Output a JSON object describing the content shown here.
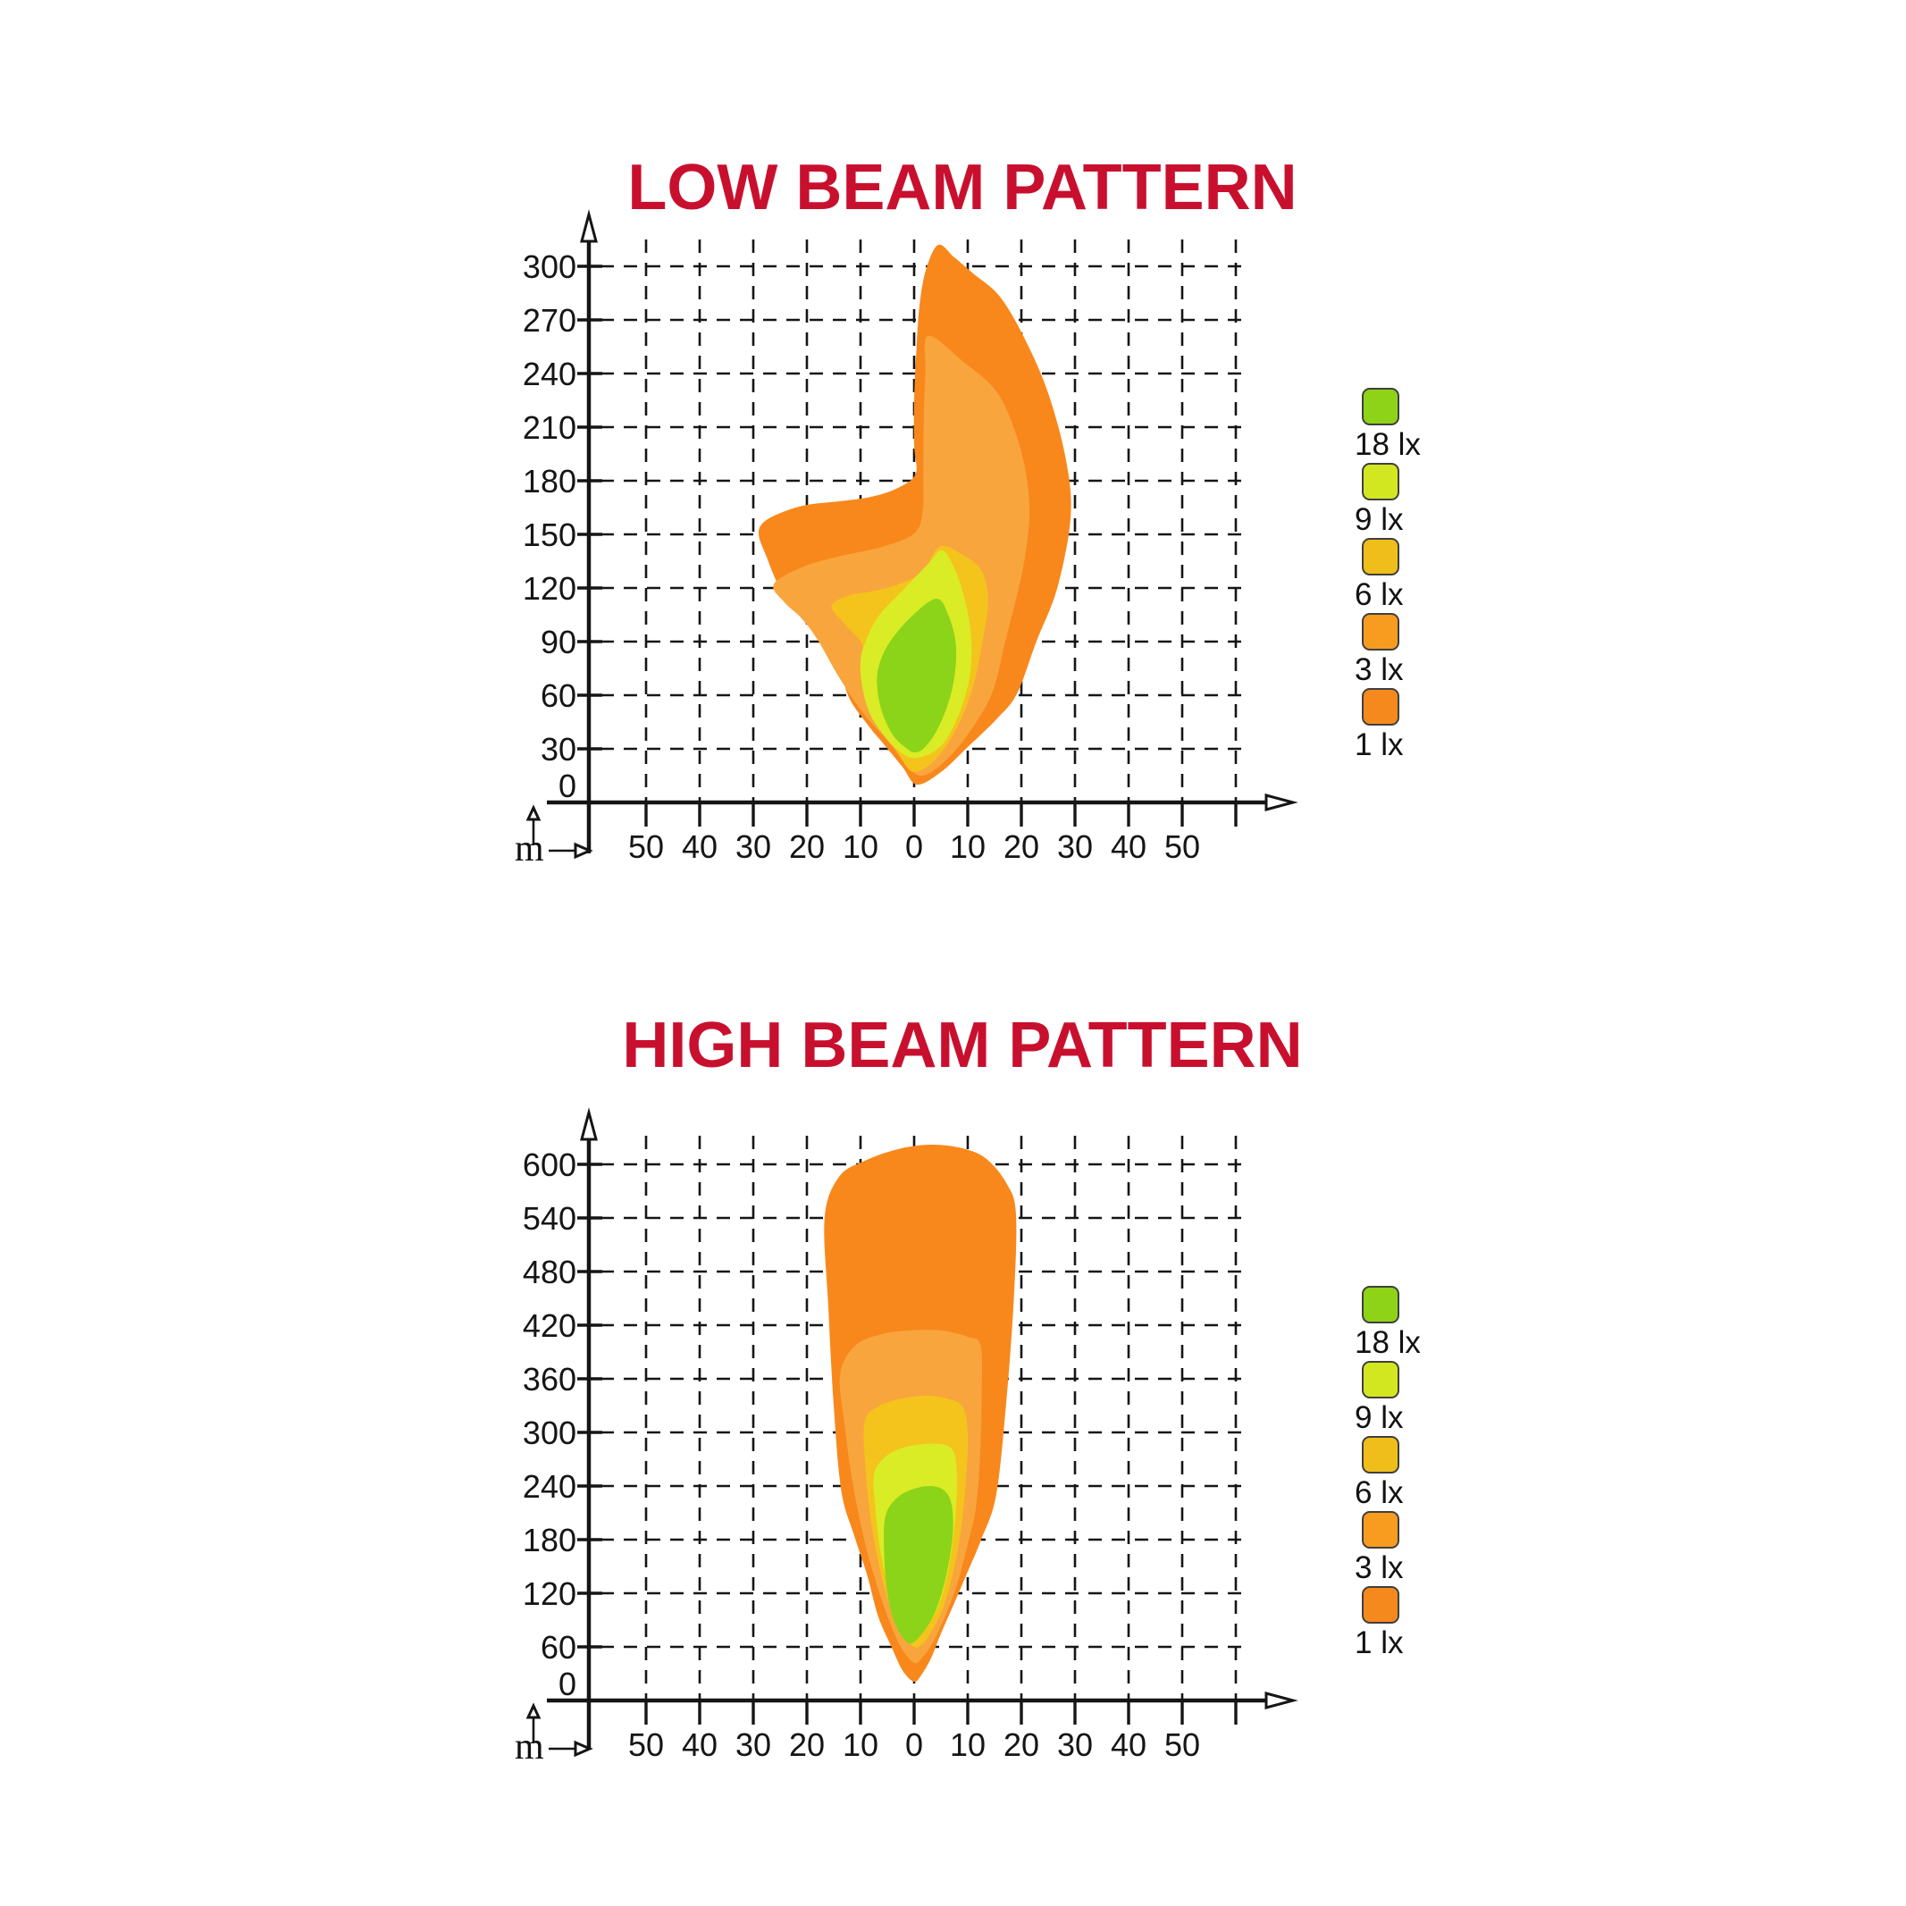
{
  "titles": {
    "low": "LOW BEAM PATTERN",
    "high": "HIGH BEAM PATTERN",
    "color": "#C8102E"
  },
  "axis_unit": "m",
  "legend": {
    "items": [
      {
        "label": "18 lx",
        "color": "#8FD318"
      },
      {
        "label": "9 lx",
        "color": "#D3E720"
      },
      {
        "label": "6 lx",
        "color": "#EFBE1B"
      },
      {
        "label": "3 lx",
        "color": "#F89C20"
      },
      {
        "label": "1 lx",
        "color": "#F6891E"
      }
    ]
  },
  "chart_data": [
    {
      "type": "contour",
      "title": "LOW BEAM PATTERN",
      "unit": "m",
      "xlim": [
        -60,
        70
      ],
      "ylim": [
        0,
        320
      ],
      "grid": "dashed",
      "legend_position": "right",
      "x_ticks": [
        {
          "value": -50,
          "label": "50"
        },
        {
          "value": -40,
          "label": "40"
        },
        {
          "value": -30,
          "label": "30"
        },
        {
          "value": -20,
          "label": "20"
        },
        {
          "value": -10,
          "label": "10"
        },
        {
          "value": 0,
          "label": "0"
        },
        {
          "value": 10,
          "label": "10"
        },
        {
          "value": 20,
          "label": "20"
        },
        {
          "value": 30,
          "label": "30"
        },
        {
          "value": 40,
          "label": "40"
        },
        {
          "value": 50,
          "label": "50"
        }
      ],
      "y_ticks": [
        {
          "value": 300,
          "label": "300"
        },
        {
          "value": 270,
          "label": "270"
        },
        {
          "value": 240,
          "label": "240"
        },
        {
          "value": 210,
          "label": "210"
        },
        {
          "value": 180,
          "label": "180"
        },
        {
          "value": 150,
          "label": "150"
        },
        {
          "value": 120,
          "label": "120"
        },
        {
          "value": 90,
          "label": "90"
        },
        {
          "value": 60,
          "label": "60"
        },
        {
          "value": 30,
          "label": "30"
        },
        {
          "value": 0,
          "label": "0"
        }
      ],
      "series": [
        {
          "name": "1 lx",
          "color": "#F8881C",
          "points": [
            [
              0.5,
              10
            ],
            [
              -2.2,
              20
            ],
            [
              -5.5,
              32
            ],
            [
              -8.8,
              44
            ],
            [
              -12.2,
              59
            ],
            [
              -14.3,
              79
            ],
            [
              -17,
              90
            ],
            [
              -21,
              105
            ],
            [
              -25,
              120
            ],
            [
              -27.6,
              138
            ],
            [
              -29,
              150
            ],
            [
              -28,
              157
            ],
            [
              -24.5,
              162.5
            ],
            [
              -20,
              166.5
            ],
            [
              -14,
              168.5
            ],
            [
              -8,
              171
            ],
            [
              -3,
              176
            ],
            [
              0.3,
              184
            ],
            [
              0,
              200
            ],
            [
              0,
              225
            ],
            [
              0.4,
              252
            ],
            [
              1,
              278
            ],
            [
              2.2,
              298
            ],
            [
              4.5,
              312
            ],
            [
              7.5,
              305
            ],
            [
              11,
              296
            ],
            [
              16,
              283
            ],
            [
              20.7,
              259
            ],
            [
              25,
              229
            ],
            [
              28.3,
              192
            ],
            [
              29.2,
              160
            ],
            [
              26.7,
              120
            ],
            [
              22.8,
              90
            ],
            [
              19.2,
              61
            ],
            [
              15.5,
              47
            ],
            [
              10,
              31
            ],
            [
              5,
              17
            ]
          ]
        },
        {
          "name": "3 lx",
          "color": "#F9A53E",
          "points": [
            [
              1,
              15
            ],
            [
              -2,
              24
            ],
            [
              -6,
              38
            ],
            [
              -10,
              52
            ],
            [
              -14,
              70
            ],
            [
              -18,
              91
            ],
            [
              -21,
              103
            ],
            [
              -24.2,
              112
            ],
            [
              -26.2,
              122
            ],
            [
              -21,
              131.5
            ],
            [
              -14.3,
              137.5
            ],
            [
              -6,
              143
            ],
            [
              0,
              150.5
            ],
            [
              1.6,
              163
            ],
            [
              1.7,
              185
            ],
            [
              1.8,
              215
            ],
            [
              2.1,
              240
            ],
            [
              2.6,
              261
            ],
            [
              9,
              247
            ],
            [
              15.8,
              228
            ],
            [
              20,
              196
            ],
            [
              21.5,
              166
            ],
            [
              20.8,
              140
            ],
            [
              19.5,
              120
            ],
            [
              17,
              90
            ],
            [
              14.5,
              61
            ],
            [
              10,
              38
            ],
            [
              5,
              21
            ]
          ]
        },
        {
          "name": "6 lx",
          "color": "#F4C41D",
          "points": [
            [
              0,
              17
            ],
            [
              -2.5,
              25
            ],
            [
              -5,
              38
            ],
            [
              -7.5,
              55
            ],
            [
              -9,
              72
            ],
            [
              -9.6,
              88
            ],
            [
              -13,
              100
            ],
            [
              -15.4,
              110
            ],
            [
              -12,
              116
            ],
            [
              -8,
              118
            ],
            [
              -3,
              122
            ],
            [
              1.5,
              129
            ],
            [
              4.8,
              143
            ],
            [
              8.8,
              139
            ],
            [
              12.5,
              130
            ],
            [
              13.8,
              113
            ],
            [
              12.8,
              91
            ],
            [
              11,
              65
            ],
            [
              8,
              42
            ],
            [
              4,
              24
            ]
          ]
        },
        {
          "name": "9 lx",
          "color": "#DAEC26",
          "points": [
            [
              -0.5,
              25
            ],
            [
              -3.3,
              30
            ],
            [
              -6,
              39
            ],
            [
              -8.3,
              50
            ],
            [
              -9.7,
              65
            ],
            [
              -10,
              79
            ],
            [
              -9.2,
              89
            ],
            [
              -6.7,
              104
            ],
            [
              -1.7,
              120
            ],
            [
              2.8,
              134
            ],
            [
              5.3,
              141
            ],
            [
              7.8,
              129
            ],
            [
              9.8,
              109
            ],
            [
              10.7,
              89
            ],
            [
              10.3,
              69
            ],
            [
              8.3,
              49
            ],
            [
              5.7,
              34
            ],
            [
              2.8,
              27
            ]
          ]
        },
        {
          "name": "18 lx",
          "color": "#8CD419",
          "points": [
            [
              0,
              28
            ],
            [
              -1.3,
              30
            ],
            [
              -3.8,
              37
            ],
            [
              -5.8,
              49
            ],
            [
              -6.8,
              62
            ],
            [
              -6.7,
              75
            ],
            [
              -4.7,
              89
            ],
            [
              -0.5,
              104
            ],
            [
              4.2,
              114
            ],
            [
              6.5,
              104
            ],
            [
              7.8,
              88
            ],
            [
              7.5,
              70
            ],
            [
              6.2,
              54
            ],
            [
              4,
              39
            ],
            [
              1.7,
              30
            ]
          ]
        }
      ]
    },
    {
      "type": "contour",
      "title": "HIGH BEAM PATTERN",
      "unit": "m",
      "xlim": [
        -60,
        70
      ],
      "ylim": [
        0,
        640
      ],
      "grid": "dashed",
      "legend_position": "right",
      "x_ticks": [
        {
          "value": -50,
          "label": "50"
        },
        {
          "value": -40,
          "label": "40"
        },
        {
          "value": -30,
          "label": "30"
        },
        {
          "value": -20,
          "label": "20"
        },
        {
          "value": -10,
          "label": "10"
        },
        {
          "value": 0,
          "label": "0"
        },
        {
          "value": 10,
          "label": "10"
        },
        {
          "value": 20,
          "label": "20"
        },
        {
          "value": 30,
          "label": "30"
        },
        {
          "value": 40,
          "label": "40"
        },
        {
          "value": 50,
          "label": "50"
        }
      ],
      "y_ticks": [
        {
          "value": 600,
          "label": "600"
        },
        {
          "value": 540,
          "label": "540"
        },
        {
          "value": 480,
          "label": "480"
        },
        {
          "value": 420,
          "label": "420"
        },
        {
          "value": 360,
          "label": "360"
        },
        {
          "value": 300,
          "label": "300"
        },
        {
          "value": 240,
          "label": "240"
        },
        {
          "value": 180,
          "label": "180"
        },
        {
          "value": 120,
          "label": "120"
        },
        {
          "value": 60,
          "label": "60"
        },
        {
          "value": 0,
          "label": "0"
        }
      ],
      "series": [
        {
          "name": "1 lx",
          "color": "#F8881C",
          "points": [
            [
              0,
              21
            ],
            [
              -2.2,
              34
            ],
            [
              -4.3,
              61
            ],
            [
              -6.7,
              94
            ],
            [
              -8.8,
              141
            ],
            [
              -11.2,
              185
            ],
            [
              -13.6,
              235
            ],
            [
              -15,
              330
            ],
            [
              -16,
              440
            ],
            [
              -16.7,
              540
            ],
            [
              -14,
              586
            ],
            [
              -9.2,
              604
            ],
            [
              -3,
              617
            ],
            [
              3,
              622
            ],
            [
              9,
              618
            ],
            [
              13.5,
              606
            ],
            [
              17.3,
              578
            ],
            [
              19,
              544
            ],
            [
              18.6,
              450
            ],
            [
              17.2,
              335
            ],
            [
              15.3,
              230
            ],
            [
              12.5,
              180
            ],
            [
              9.7,
              140
            ],
            [
              7.2,
              105
            ],
            [
              5,
              75
            ],
            [
              3.2,
              48
            ],
            [
              1.5,
              30
            ]
          ]
        },
        {
          "name": "3 lx",
          "color": "#F9A53E",
          "points": [
            [
              0,
              42
            ],
            [
              -2.5,
              60
            ],
            [
              -5,
              95
            ],
            [
              -7.5,
              140
            ],
            [
              -9.5,
              185
            ],
            [
              -11.5,
              245
            ],
            [
              -13,
              310
            ],
            [
              -13.8,
              365
            ],
            [
              -11,
              397
            ],
            [
              -6,
              410
            ],
            [
              -1,
              414
            ],
            [
              5,
              414
            ],
            [
              10,
              407
            ],
            [
              12.4,
              397
            ],
            [
              12.6,
              345
            ],
            [
              12.3,
              275
            ],
            [
              11.5,
              215
            ],
            [
              10,
              175
            ],
            [
              8,
              130
            ],
            [
              5.5,
              90
            ],
            [
              3,
              60
            ],
            [
              1.5,
              48
            ]
          ]
        },
        {
          "name": "6 lx",
          "color": "#F4C41D",
          "points": [
            [
              0,
              60
            ],
            [
              -2.5,
              75
            ],
            [
              -4.5,
              105
            ],
            [
              -6.5,
              150
            ],
            [
              -8,
              200
            ],
            [
              -9,
              255
            ],
            [
              -9.3,
              310
            ],
            [
              -7,
              328
            ],
            [
              -3,
              337
            ],
            [
              2,
              341
            ],
            [
              6,
              338
            ],
            [
              9,
              329
            ],
            [
              10,
              300
            ],
            [
              9.7,
              250
            ],
            [
              8.8,
              195
            ],
            [
              7.5,
              150
            ],
            [
              5.5,
              105
            ],
            [
              3,
              75
            ],
            [
              1.5,
              63
            ]
          ]
        },
        {
          "name": "9 lx",
          "color": "#DAEC26",
          "points": [
            [
              -0.5,
              74
            ],
            [
              -3,
              92
            ],
            [
              -5,
              130
            ],
            [
              -6.5,
              175
            ],
            [
              -7.3,
              220
            ],
            [
              -7.5,
              253
            ],
            [
              -5.5,
              272
            ],
            [
              -2,
              283
            ],
            [
              2,
              287
            ],
            [
              5.8,
              286
            ],
            [
              7.5,
              276
            ],
            [
              8,
              245
            ],
            [
              7.6,
              200
            ],
            [
              6.5,
              150
            ],
            [
              4.5,
              105
            ],
            [
              2,
              82
            ]
          ]
        },
        {
          "name": "18 lx",
          "color": "#8CD419",
          "points": [
            [
              -1,
              64
            ],
            [
              -3.5,
              85
            ],
            [
              -5,
              120
            ],
            [
              -5.6,
              165
            ],
            [
              -5.4,
              205
            ],
            [
              -3.5,
              225
            ],
            [
              -0.5,
              236
            ],
            [
              3,
              240
            ],
            [
              5.6,
              235
            ],
            [
              7,
              219
            ],
            [
              7.2,
              185
            ],
            [
              6,
              140
            ],
            [
              4,
              100
            ],
            [
              1.5,
              75
            ]
          ]
        }
      ]
    }
  ]
}
